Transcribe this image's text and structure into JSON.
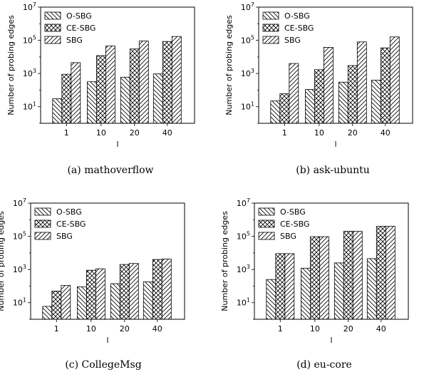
{
  "chart_data": [
    {
      "type": "bar",
      "caption": "(a)  mathoverflow",
      "xlabel": "l",
      "ylabel": "Number of probing edges",
      "yscale": "log",
      "ylim": [
        1,
        10000000
      ],
      "ytick_labels": [
        "10^1",
        "10^3",
        "10^5",
        "10^7"
      ],
      "categories": [
        "1",
        "10",
        "20",
        "40"
      ],
      "legend_position": "top-left",
      "series": [
        {
          "name": "O-SBG",
          "values": [
            30,
            320,
            600,
            950
          ]
        },
        {
          "name": "CE-SBG",
          "values": [
            900,
            12000,
            30000,
            85000
          ]
        },
        {
          "name": "SBG",
          "values": [
            4500,
            45000,
            90000,
            170000
          ]
        }
      ]
    },
    {
      "type": "bar",
      "caption": "(b)  ask-ubuntu",
      "xlabel": "l",
      "ylabel": "Number of probing edges",
      "yscale": "log",
      "ylim": [
        1,
        10000000
      ],
      "ytick_labels": [
        "10^1",
        "10^3",
        "10^5",
        "10^7"
      ],
      "categories": [
        "1",
        "10",
        "20",
        "40"
      ],
      "legend_position": "top-left",
      "series": [
        {
          "name": "O-SBG",
          "values": [
            22,
            110,
            300,
            400
          ]
        },
        {
          "name": "CE-SBG",
          "values": [
            60,
            1700,
            3000,
            35000
          ]
        },
        {
          "name": "SBG",
          "values": [
            4000,
            38000,
            80000,
            160000
          ]
        }
      ]
    },
    {
      "type": "bar",
      "caption": "(c)  CollegeMsg",
      "xlabel": "l",
      "ylabel": "Number of probing edges",
      "yscale": "log",
      "ylim": [
        1,
        10000000
      ],
      "ytick_labels": [
        "10^1",
        "10^3",
        "10^5",
        "10^7"
      ],
      "categories": [
        "1",
        "10",
        "20",
        "40"
      ],
      "legend_position": "top-left",
      "series": [
        {
          "name": "O-SBG",
          "values": [
            6,
            90,
            140,
            180
          ]
        },
        {
          "name": "CE-SBG",
          "values": [
            50,
            900,
            2000,
            4000
          ]
        },
        {
          "name": "SBG",
          "values": [
            110,
            1100,
            2300,
            4300
          ]
        }
      ]
    },
    {
      "type": "bar",
      "caption": "(d)  eu-core",
      "xlabel": "l",
      "ylabel": "Number of probing edges",
      "yscale": "log",
      "ylim": [
        1,
        10000000
      ],
      "ytick_labels": [
        "10^1",
        "10^3",
        "10^5",
        "10^7"
      ],
      "categories": [
        "1",
        "10",
        "20",
        "40"
      ],
      "legend_position": "top-left",
      "series": [
        {
          "name": "O-SBG",
          "values": [
            250,
            1200,
            2500,
            4500
          ]
        },
        {
          "name": "CE-SBG",
          "values": [
            9000,
            95000,
            200000,
            400000
          ]
        },
        {
          "name": "SBG",
          "values": [
            9000,
            95000,
            200000,
            400000
          ]
        }
      ]
    }
  ]
}
